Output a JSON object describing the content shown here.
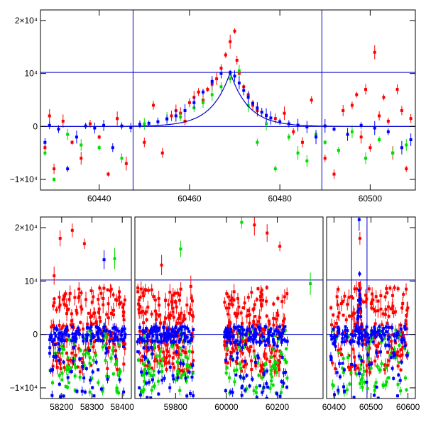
{
  "chart_data": [
    {
      "type": "scatter",
      "title": "",
      "xlabel": "",
      "ylabel": "",
      "xlim": [
        60427,
        60510
      ],
      "ylim": [
        -12000,
        22000
      ],
      "x_ticks": [
        {
          "value": 60440,
          "label": "60440"
        },
        {
          "value": 60460,
          "label": "60460"
        },
        {
          "value": 60480,
          "label": "60480"
        },
        {
          "value": 60500,
          "label": "60500"
        }
      ],
      "y_ticks": [
        {
          "value": -10000,
          "label": "−1×10⁴"
        },
        {
          "value": 0,
          "label": "0"
        },
        {
          "value": 10000,
          "label": "10⁴"
        },
        {
          "value": 20000,
          "label": "2×10⁴"
        }
      ],
      "hlines": [
        0,
        10200
      ],
      "vlines": [
        60447.5,
        60489.3
      ],
      "model_curve": {
        "color": "#0000cc",
        "peak_x": 60469,
        "peak_y": 10200,
        "baseline_y": 0,
        "width": 4.5
      },
      "series": [
        {
          "color": "#ff0000",
          "points": [
            [
              60428,
              -4000
            ],
            [
              60429,
              2000
            ],
            [
              60430,
              -8000
            ],
            [
              60432,
              1000
            ],
            [
              60434,
              -3000
            ],
            [
              60436,
              -6000
            ],
            [
              60438,
              500
            ],
            [
              60440,
              -2000
            ],
            [
              60442,
              -9000
            ],
            [
              60444,
              1500
            ],
            [
              60446,
              -7000
            ],
            [
              60450,
              -3000
            ],
            [
              60452,
              4000
            ],
            [
              60454,
              -5000
            ],
            [
              60456,
              2000
            ],
            [
              60457,
              3000
            ],
            [
              60458,
              2500
            ],
            [
              60459,
              1000
            ],
            [
              60460,
              4500
            ],
            [
              60461,
              5500
            ],
            [
              60462,
              6500
            ],
            [
              60463,
              5000
            ],
            [
              60464,
              7000
            ],
            [
              60465,
              8000
            ],
            [
              60466,
              9000
            ],
            [
              60467,
              11000
            ],
            [
              60468,
              13500
            ],
            [
              60469,
              16000
            ],
            [
              60470,
              18000
            ],
            [
              60470.5,
              12500
            ],
            [
              60471,
              10000
            ],
            [
              60472,
              7500
            ],
            [
              60473,
              6000
            ],
            [
              60474,
              4000
            ],
            [
              60475,
              3000
            ],
            [
              60477,
              2000
            ],
            [
              60479,
              1500
            ],
            [
              60481,
              2500
            ],
            [
              60483,
              -1000
            ],
            [
              60485,
              -3000
            ],
            [
              60487,
              5000
            ],
            [
              60490,
              -6000
            ],
            [
              60492,
              -9000
            ],
            [
              60494,
              3000
            ],
            [
              60496,
              4000
            ],
            [
              60497,
              6000
            ],
            [
              60498,
              -2000
            ],
            [
              60499,
              7000
            ],
            [
              60500,
              -4000
            ],
            [
              60501,
              14000
            ],
            [
              60502,
              2000
            ],
            [
              60503,
              5500
            ],
            [
              60504,
              1000
            ],
            [
              60505,
              -5000
            ],
            [
              60506,
              7000
            ],
            [
              60507,
              3000
            ],
            [
              60508,
              -8000
            ],
            [
              60509,
              1500
            ]
          ]
        },
        {
          "color": "#00dd00",
          "points": [
            [
              60428,
              -5000
            ],
            [
              60430,
              -10000
            ],
            [
              60433,
              -1500
            ],
            [
              60436,
              -3500
            ],
            [
              60440,
              -4000
            ],
            [
              60445,
              -6000
            ],
            [
              60450,
              500
            ],
            [
              60455,
              1500
            ],
            [
              60458,
              1800
            ],
            [
              60461,
              3500
            ],
            [
              60463,
              4500
            ],
            [
              60465,
              6000
            ],
            [
              60467,
              7500
            ],
            [
              60469,
              9000
            ],
            [
              60471,
              10500
            ],
            [
              60473,
              4000
            ],
            [
              60475,
              -3000
            ],
            [
              60477,
              500
            ],
            [
              60479,
              -8000
            ],
            [
              60482,
              -2000
            ],
            [
              60484,
              -5000
            ],
            [
              60486,
              -6500
            ],
            [
              60488,
              -1500
            ],
            [
              60490,
              -3000
            ],
            [
              60493,
              -4500
            ],
            [
              60496,
              -1000
            ],
            [
              60499,
              -6000
            ],
            [
              60502,
              -2500
            ],
            [
              60505,
              -5000
            ],
            [
              60508,
              -3500
            ]
          ]
        },
        {
          "color": "#0000ff",
          "points": [
            [
              60428,
              -3000
            ],
            [
              60429,
              200
            ],
            [
              60431,
              -500
            ],
            [
              60433,
              -8000
            ],
            [
              60435,
              -2000
            ],
            [
              60437,
              100
            ],
            [
              60439,
              -300
            ],
            [
              60441,
              200
            ],
            [
              60443,
              -4000
            ],
            [
              60445,
              100
            ],
            [
              60447,
              -200
            ],
            [
              60449,
              400
            ],
            [
              60451,
              600
            ],
            [
              60453,
              900
            ],
            [
              60455,
              1400
            ],
            [
              60457,
              2000
            ],
            [
              60459,
              3000
            ],
            [
              60461,
              4500
            ],
            [
              60463,
              6500
            ],
            [
              60465,
              8500
            ],
            [
              60467,
              10000
            ],
            [
              60469,
              10200
            ],
            [
              60470,
              9500
            ],
            [
              60471,
              8200
            ],
            [
              60472,
              6800
            ],
            [
              60473,
              5500
            ],
            [
              60474,
              4400
            ],
            [
              60475,
              3500
            ],
            [
              60476,
              2700
            ],
            [
              60477,
              2100
            ],
            [
              60478,
              1600
            ],
            [
              60480,
              900
            ],
            [
              60482,
              500
            ],
            [
              60484,
              250
            ],
            [
              60486,
              -100
            ],
            [
              60488,
              -2000
            ],
            [
              60490,
              100
            ],
            [
              60492,
              -500
            ],
            [
              60495,
              -1500
            ],
            [
              60498,
              200
            ],
            [
              60501,
              -300
            ],
            [
              60504,
              -1000
            ],
            [
              60507,
              -4000
            ],
            [
              60509,
              -2500
            ]
          ]
        }
      ]
    },
    {
      "type": "scatter",
      "title": "",
      "xlabel": "",
      "ylabel": "",
      "broken_x_axis": true,
      "ylim": [
        -12000,
        22000
      ],
      "segments": [
        {
          "xlim": [
            58130,
            58430
          ],
          "x_ticks": [
            {
              "value": 58200,
              "label": "58200"
            },
            {
              "value": 58300,
              "label": "58300"
            },
            {
              "value": 58400,
              "label": "58400"
            }
          ]
        },
        {
          "xlim": [
            59640,
            60380
          ],
          "x_ticks": [
            {
              "value": 59800,
              "label": "59800"
            },
            {
              "value": 60000,
              "label": "60000"
            },
            {
              "value": 60200,
              "label": "60200"
            }
          ]
        },
        {
          "xlim": [
            60380,
            60620
          ],
          "x_ticks": [
            {
              "value": 60400,
              "label": "60400"
            },
            {
              "value": 60500,
              "label": "60500"
            },
            {
              "value": 60600,
              "label": "60600"
            }
          ]
        }
      ],
      "y_ticks": [
        {
          "value": -10000,
          "label": "−1×10⁴"
        },
        {
          "value": 0,
          "label": "0"
        },
        {
          "value": 10000,
          "label": "10⁴"
        },
        {
          "value": 20000,
          "label": "2×10⁴"
        }
      ],
      "hlines": [
        0,
        10200
      ],
      "vlines": [
        60447.5,
        60489.3
      ],
      "observing_seasons": [
        {
          "xmin": 58160,
          "xmax": 58410,
          "series": [
            "#ff0000",
            "#00dd00",
            "#0000ff"
          ]
        },
        {
          "xmin": 59650,
          "xmax": 59870,
          "series": [
            "#ff0000",
            "#00dd00",
            "#0000ff"
          ]
        },
        {
          "xmin": 59990,
          "xmax": 60240,
          "series": [
            "#ff0000",
            "#00dd00",
            "#0000ff"
          ]
        },
        {
          "xmin": 60390,
          "xmax": 60600,
          "series": [
            "#ff0000",
            "#00dd00",
            "#0000ff"
          ]
        }
      ],
      "outliers": [
        {
          "x": 58195,
          "y": 18000,
          "color": "#ff0000"
        },
        {
          "x": 58235,
          "y": 19500,
          "color": "#ff0000"
        },
        {
          "x": 58275,
          "y": 17000,
          "color": "#ff0000"
        },
        {
          "x": 58340,
          "y": 14000,
          "color": "#0000ff"
        },
        {
          "x": 58375,
          "y": 14200,
          "color": "#00dd00"
        },
        {
          "x": 58175,
          "y": 11000,
          "color": "#ff0000"
        },
        {
          "x": 59745,
          "y": 13000,
          "color": "#ff0000"
        },
        {
          "x": 59820,
          "y": 16000,
          "color": "#00dd00"
        },
        {
          "x": 59860,
          "y": 9000,
          "color": "#ff0000"
        },
        {
          "x": 60110,
          "y": 20500,
          "color": "#ff0000"
        },
        {
          "x": 60160,
          "y": 19000,
          "color": "#ff0000"
        },
        {
          "x": 60210,
          "y": 16500,
          "color": "#ff0000"
        },
        {
          "x": 60060,
          "y": 21000,
          "color": "#00dd00"
        },
        {
          "x": 60330,
          "y": 9500,
          "color": "#00dd00"
        },
        {
          "x": 60470,
          "y": 18000,
          "color": "#ff0000"
        },
        {
          "x": 60468,
          "y": 21500,
          "color": "#0000ff"
        }
      ]
    }
  ]
}
